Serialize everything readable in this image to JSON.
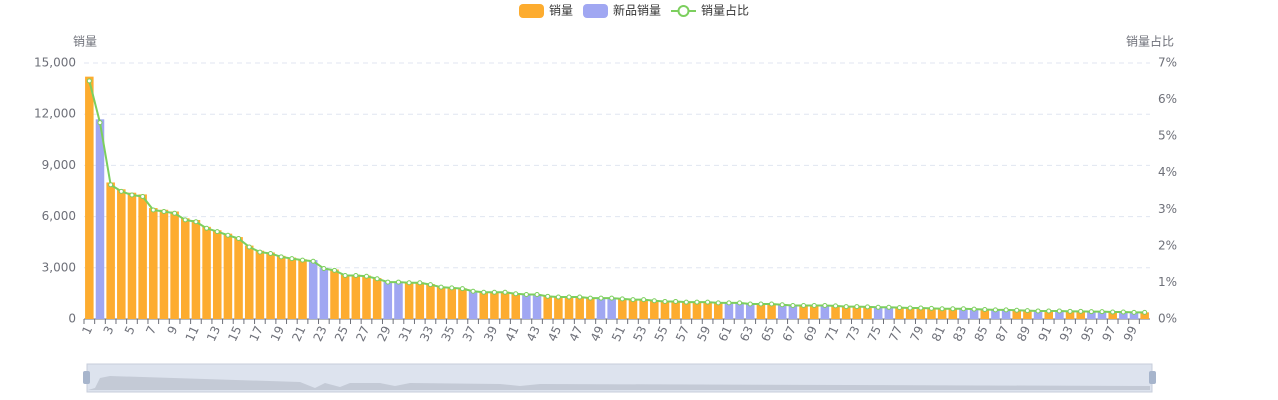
{
  "chart_data": {
    "type": "bar-line",
    "categories": [
      "1",
      null,
      "3",
      null,
      "5",
      null,
      "7",
      null,
      "9",
      null,
      "11",
      null,
      "13",
      null,
      "15",
      null,
      "17",
      null,
      "19",
      null,
      "21",
      null,
      "23",
      null,
      "25",
      null,
      "27",
      null,
      "29",
      null,
      "31",
      null,
      "33",
      null,
      "35",
      null,
      "37",
      null,
      "39",
      null,
      "41",
      null,
      "43",
      null,
      "45",
      null,
      "47",
      null,
      "49",
      null,
      "51",
      null,
      "53",
      null,
      "55",
      null,
      "57",
      null,
      "59",
      null,
      "61",
      null,
      "63",
      null,
      "65",
      null,
      "67",
      null,
      "69",
      null,
      "71",
      null,
      "73",
      null,
      "75",
      null,
      "77",
      null,
      "79",
      null,
      "81",
      null,
      "83",
      null,
      "85",
      null,
      "87",
      null,
      "89",
      null,
      "91",
      null,
      "93",
      null,
      "95",
      null,
      "97",
      null,
      "99",
      null
    ],
    "y_label": "销量",
    "y2_label": "销量占比",
    "series": [
      {
        "name": "销量",
        "kind": "bar",
        "color": "#fdac2f",
        "values": [
          14200,
          null,
          8000,
          7600,
          7400,
          7300,
          6500,
          6400,
          6300,
          5900,
          5800,
          5400,
          5200,
          5000,
          4800,
          4300,
          4000,
          3900,
          3700,
          3600,
          3500,
          null,
          null,
          2900,
          2600,
          2600,
          2550,
          2400,
          null,
          null,
          2150,
          2150,
          2050,
          1900,
          1850,
          1800,
          null,
          1600,
          1600,
          1600,
          1500,
          null,
          null,
          1350,
          1300,
          1300,
          1300,
          1250,
          null,
          null,
          1200,
          1150,
          1150,
          1100,
          1050,
          1050,
          1000,
          1000,
          1000,
          950,
          null,
          null,
          null,
          900,
          900,
          null,
          null,
          800,
          800,
          null,
          780,
          750,
          750,
          720,
          null,
          null,
          680,
          650,
          650,
          630,
          620,
          600,
          null,
          null,
          560,
          null,
          null,
          520,
          500,
          null,
          480,
          null,
          460,
          450,
          null,
          null,
          420,
          null,
          null,
          390
        ]
      },
      {
        "name": "新品销量",
        "kind": "bar",
        "color": "#a0a7f2",
        "values": [
          null,
          11700,
          null,
          null,
          null,
          null,
          null,
          null,
          null,
          null,
          null,
          null,
          null,
          null,
          null,
          null,
          null,
          null,
          null,
          null,
          null,
          3450,
          3000,
          null,
          null,
          null,
          null,
          null,
          2200,
          2200,
          null,
          null,
          null,
          null,
          null,
          null,
          1650,
          null,
          null,
          null,
          null,
          1450,
          1450,
          null,
          null,
          null,
          null,
          null,
          1250,
          1250,
          null,
          null,
          null,
          null,
          null,
          null,
          null,
          null,
          null,
          null,
          950,
          950,
          900,
          null,
          null,
          850,
          800,
          null,
          null,
          800,
          null,
          null,
          null,
          null,
          700,
          700,
          null,
          null,
          null,
          null,
          null,
          null,
          600,
          580,
          null,
          550,
          540,
          null,
          null,
          490,
          null,
          470,
          null,
          null,
          440,
          430,
          null,
          410,
          400,
          null
        ]
      },
      {
        "name": "销量占比",
        "kind": "line",
        "axis": "y2",
        "color": "#7ccf5e",
        "values": [
          6.51,
          5.37,
          3.67,
          3.49,
          3.39,
          3.35,
          2.98,
          2.94,
          2.89,
          2.71,
          2.66,
          2.48,
          2.39,
          2.29,
          2.2,
          1.97,
          1.83,
          1.79,
          1.7,
          1.65,
          1.61,
          1.58,
          1.38,
          1.33,
          1.19,
          1.19,
          1.17,
          1.1,
          1.01,
          1.01,
          0.99,
          0.99,
          0.94,
          0.87,
          0.85,
          0.83,
          0.76,
          0.73,
          0.73,
          0.73,
          0.69,
          0.67,
          0.67,
          0.62,
          0.6,
          0.6,
          0.6,
          0.57,
          0.57,
          0.57,
          0.55,
          0.53,
          0.53,
          0.5,
          0.48,
          0.48,
          0.46,
          0.46,
          0.46,
          0.44,
          0.44,
          0.44,
          0.41,
          0.41,
          0.41,
          0.39,
          0.37,
          0.37,
          0.37,
          0.37,
          0.36,
          0.34,
          0.34,
          0.33,
          0.32,
          0.32,
          0.31,
          0.3,
          0.3,
          0.29,
          0.28,
          0.28,
          0.28,
          0.27,
          0.26,
          0.25,
          0.25,
          0.24,
          0.23,
          0.22,
          0.22,
          0.22,
          0.21,
          0.21,
          0.2,
          0.2,
          0.19,
          0.19,
          0.18,
          0.18
        ]
      }
    ],
    "ylim": [
      0,
      15000
    ],
    "yticks": [
      0,
      {
        "value": 3000,
        "label": "3,000"
      },
      {
        "value": 6000,
        "label": "6,000"
      },
      {
        "value": 9000,
        "label": "9,000"
      },
      {
        "value": 12000,
        "label": "12,000"
      },
      {
        "value": 15000,
        "label": "15,000"
      }
    ],
    "y2lim": [
      0,
      7
    ],
    "y2ticks": [
      {
        "value": 0,
        "label": "0%"
      },
      {
        "value": 1,
        "label": "1%"
      },
      {
        "value": 2,
        "label": "2%"
      },
      {
        "value": 3,
        "label": "3%"
      },
      {
        "value": 4,
        "label": "4%"
      },
      {
        "value": 5,
        "label": "5%"
      },
      {
        "value": 6,
        "label": "6%"
      },
      {
        "value": 7,
        "label": "7%"
      }
    ],
    "grid": true
  }
}
